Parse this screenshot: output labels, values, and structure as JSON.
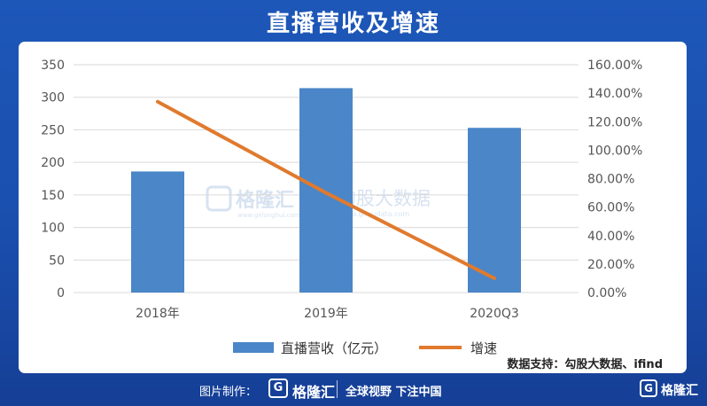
{
  "title": "直播营收及增速",
  "chart_data": {
    "type": "bar",
    "title": "直播营收及增速",
    "categories": [
      "2018年",
      "2019年",
      "2020Q3"
    ],
    "series": [
      {
        "name": "直播营收（亿元）",
        "type": "bar",
        "axis": "left",
        "values": [
          186,
          314,
          253
        ],
        "color": "#4a86c8"
      },
      {
        "name": "增速",
        "type": "line",
        "axis": "right",
        "values": [
          1.34,
          0.7,
          0.1
        ],
        "color": "#e07a2e"
      }
    ],
    "y_left": {
      "ylim": [
        0,
        350
      ],
      "ticks": [
        "0",
        "50",
        "100",
        "150",
        "200",
        "250",
        "300",
        "350"
      ]
    },
    "y_right": {
      "ylim": [
        0,
        1.6
      ],
      "ticks": [
        "0.00%",
        "20.00%",
        "40.00%",
        "60.00%",
        "80.00%",
        "100.00%",
        "120.00%",
        "140.00%",
        "160.00%"
      ]
    },
    "grid": true,
    "legend": "bottom"
  },
  "watermark": {
    "brand": "格隆汇",
    "site1": "www.gelonghui.com",
    "brand2": "勾股大数据",
    "site2": "www.gogudata.com"
  },
  "source": "数据支持：勾股大数据、ifind",
  "footer": {
    "credit": "图片制作：",
    "logo_mark": "G",
    "logo_text": "格隆汇",
    "slogan": "全球视野 下注中国",
    "logo_text2": "格隆汇"
  }
}
